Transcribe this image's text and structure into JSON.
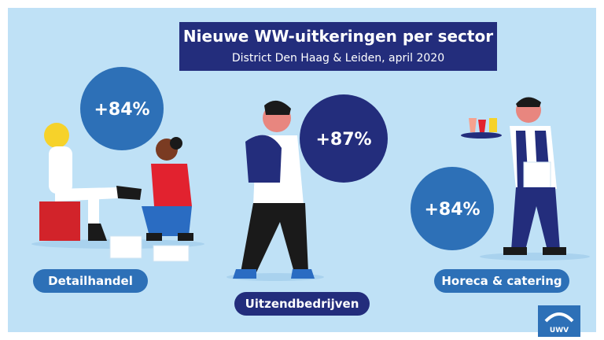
{
  "header": {
    "title": "Nieuwe WW-uitkeringen per sector",
    "subtitle": "District Den Haag & Leiden, april 2020"
  },
  "sectors": [
    {
      "name": "Detailhandel",
      "change": "+84%"
    },
    {
      "name": "Uitzendbedrijven",
      "change": "+87%"
    },
    {
      "name": "Horeca & catering",
      "change": "+84%"
    }
  ],
  "logo": "UWV"
}
